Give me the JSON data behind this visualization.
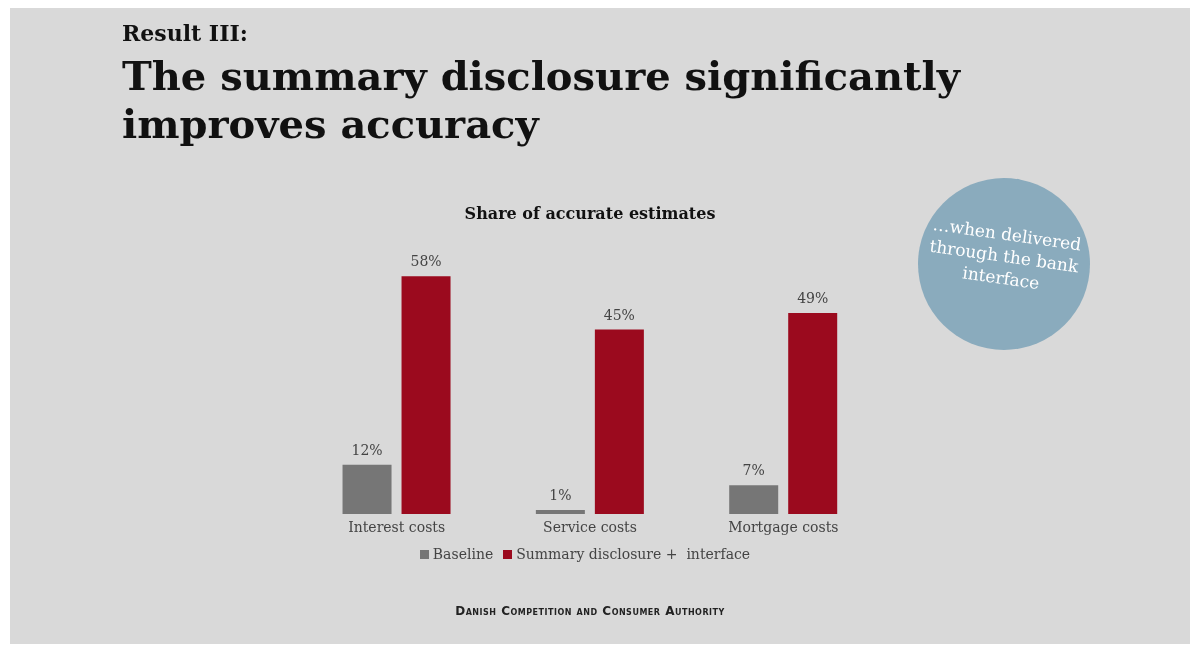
{
  "chart_data": {
    "type": "bar",
    "title": "The summary disclosure significantly improves accuracy",
    "subtitle": "Share of accurate estimates",
    "annotations": [
      "Result III:",
      "…when delivered through the bank interface",
      "Danish Competition and Consumer Authority"
    ],
    "categories": [
      "Interest costs",
      "Service costs",
      "Mortgage costs"
    ],
    "series": [
      {
        "name": "Baseline",
        "color": "#767676",
        "values": [
          12,
          1,
          7
        ],
        "value_labels": [
          "12%",
          "1%",
          "7%"
        ]
      },
      {
        "name": "Summary disclosure +  interface",
        "color": "#9b0a1e",
        "values": [
          58,
          45,
          49
        ],
        "value_labels": [
          "58%",
          "45%",
          "49%"
        ]
      }
    ],
    "legend": "bottom",
    "grid": false
  }
}
